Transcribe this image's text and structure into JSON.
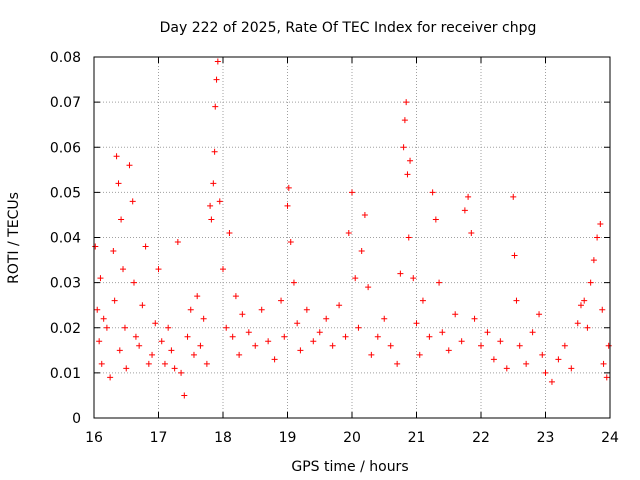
{
  "chart_data": {
    "type": "scatter",
    "title": "Day 222 of 2025, Rate Of TEC Index for receiver chpg",
    "xlabel": "GPS time / hours",
    "ylabel": "ROTI / TECUs",
    "xlim": [
      16,
      24
    ],
    "ylim": [
      0,
      0.08
    ],
    "x_ticks": [
      16,
      17,
      18,
      19,
      20,
      21,
      22,
      23,
      24
    ],
    "y_ticks": [
      0,
      0.01,
      0.02,
      0.03,
      0.04,
      0.05,
      0.06,
      0.07,
      0.08
    ],
    "x_tick_labels": [
      "16",
      "17",
      "18",
      "19",
      "20",
      "21",
      "22",
      "23",
      "24"
    ],
    "y_tick_labels": [
      "0",
      "0.01",
      "0.02",
      "0.03",
      "0.04",
      "0.05",
      "0.06",
      "0.07",
      "0.08"
    ],
    "grid": true,
    "marker": "+",
    "marker_color": "#ff0000",
    "series": [
      {
        "name": "ROTI",
        "x": [
          16.02,
          16.05,
          16.08,
          16.1,
          16.12,
          16.15,
          16.2,
          16.25,
          16.3,
          16.32,
          16.35,
          16.38,
          16.4,
          16.42,
          16.45,
          16.48,
          16.5,
          16.55,
          16.6,
          16.62,
          16.65,
          16.7,
          16.75,
          16.8,
          16.85,
          16.9,
          16.95,
          17.0,
          17.05,
          17.1,
          17.15,
          17.2,
          17.25,
          17.3,
          17.35,
          17.4,
          17.45,
          17.5,
          17.55,
          17.6,
          17.65,
          17.7,
          17.75,
          17.8,
          17.82,
          17.85,
          17.87,
          17.88,
          17.9,
          17.92,
          17.95,
          18.0,
          18.05,
          18.1,
          18.15,
          18.2,
          18.25,
          18.3,
          18.4,
          18.5,
          18.6,
          18.7,
          18.8,
          18.9,
          18.95,
          19.0,
          19.02,
          19.05,
          19.1,
          19.15,
          19.2,
          19.3,
          19.4,
          19.5,
          19.6,
          19.7,
          19.8,
          19.9,
          19.95,
          20.0,
          20.05,
          20.1,
          20.15,
          20.2,
          20.25,
          20.3,
          20.4,
          20.5,
          20.6,
          20.7,
          20.75,
          20.8,
          20.82,
          20.84,
          20.86,
          20.88,
          20.9,
          20.95,
          21.0,
          21.05,
          21.1,
          21.2,
          21.25,
          21.3,
          21.35,
          21.4,
          21.5,
          21.6,
          21.7,
          21.75,
          21.8,
          21.85,
          21.9,
          22.0,
          22.1,
          22.2,
          22.3,
          22.4,
          22.5,
          22.52,
          22.55,
          22.6,
          22.7,
          22.8,
          22.9,
          22.95,
          23.0,
          23.1,
          23.2,
          23.3,
          23.4,
          23.5,
          23.55,
          23.6,
          23.65,
          23.7,
          23.75,
          23.8,
          23.85,
          23.88,
          23.9,
          23.95,
          23.98
        ],
        "y": [
          0.038,
          0.024,
          0.017,
          0.031,
          0.012,
          0.022,
          0.02,
          0.009,
          0.037,
          0.026,
          0.058,
          0.052,
          0.015,
          0.044,
          0.033,
          0.02,
          0.011,
          0.056,
          0.048,
          0.03,
          0.018,
          0.016,
          0.025,
          0.038,
          0.012,
          0.014,
          0.021,
          0.033,
          0.017,
          0.012,
          0.02,
          0.015,
          0.011,
          0.039,
          0.01,
          0.005,
          0.018,
          0.024,
          0.014,
          0.027,
          0.016,
          0.022,
          0.012,
          0.047,
          0.044,
          0.052,
          0.059,
          0.069,
          0.075,
          0.079,
          0.048,
          0.033,
          0.02,
          0.041,
          0.018,
          0.027,
          0.014,
          0.023,
          0.019,
          0.016,
          0.024,
          0.017,
          0.013,
          0.026,
          0.018,
          0.047,
          0.051,
          0.039,
          0.03,
          0.021,
          0.015,
          0.024,
          0.017,
          0.019,
          0.022,
          0.016,
          0.025,
          0.018,
          0.041,
          0.05,
          0.031,
          0.02,
          0.037,
          0.045,
          0.029,
          0.014,
          0.018,
          0.022,
          0.016,
          0.012,
          0.032,
          0.06,
          0.066,
          0.07,
          0.054,
          0.04,
          0.057,
          0.031,
          0.021,
          0.014,
          0.026,
          0.018,
          0.05,
          0.044,
          0.03,
          0.019,
          0.015,
          0.023,
          0.017,
          0.046,
          0.049,
          0.041,
          0.022,
          0.016,
          0.019,
          0.013,
          0.017,
          0.011,
          0.049,
          0.036,
          0.026,
          0.016,
          0.012,
          0.019,
          0.023,
          0.014,
          0.01,
          0.008,
          0.013,
          0.016,
          0.011,
          0.021,
          0.025,
          0.026,
          0.02,
          0.03,
          0.035,
          0.04,
          0.043,
          0.024,
          0.012,
          0.009,
          0.016
        ]
      }
    ]
  }
}
